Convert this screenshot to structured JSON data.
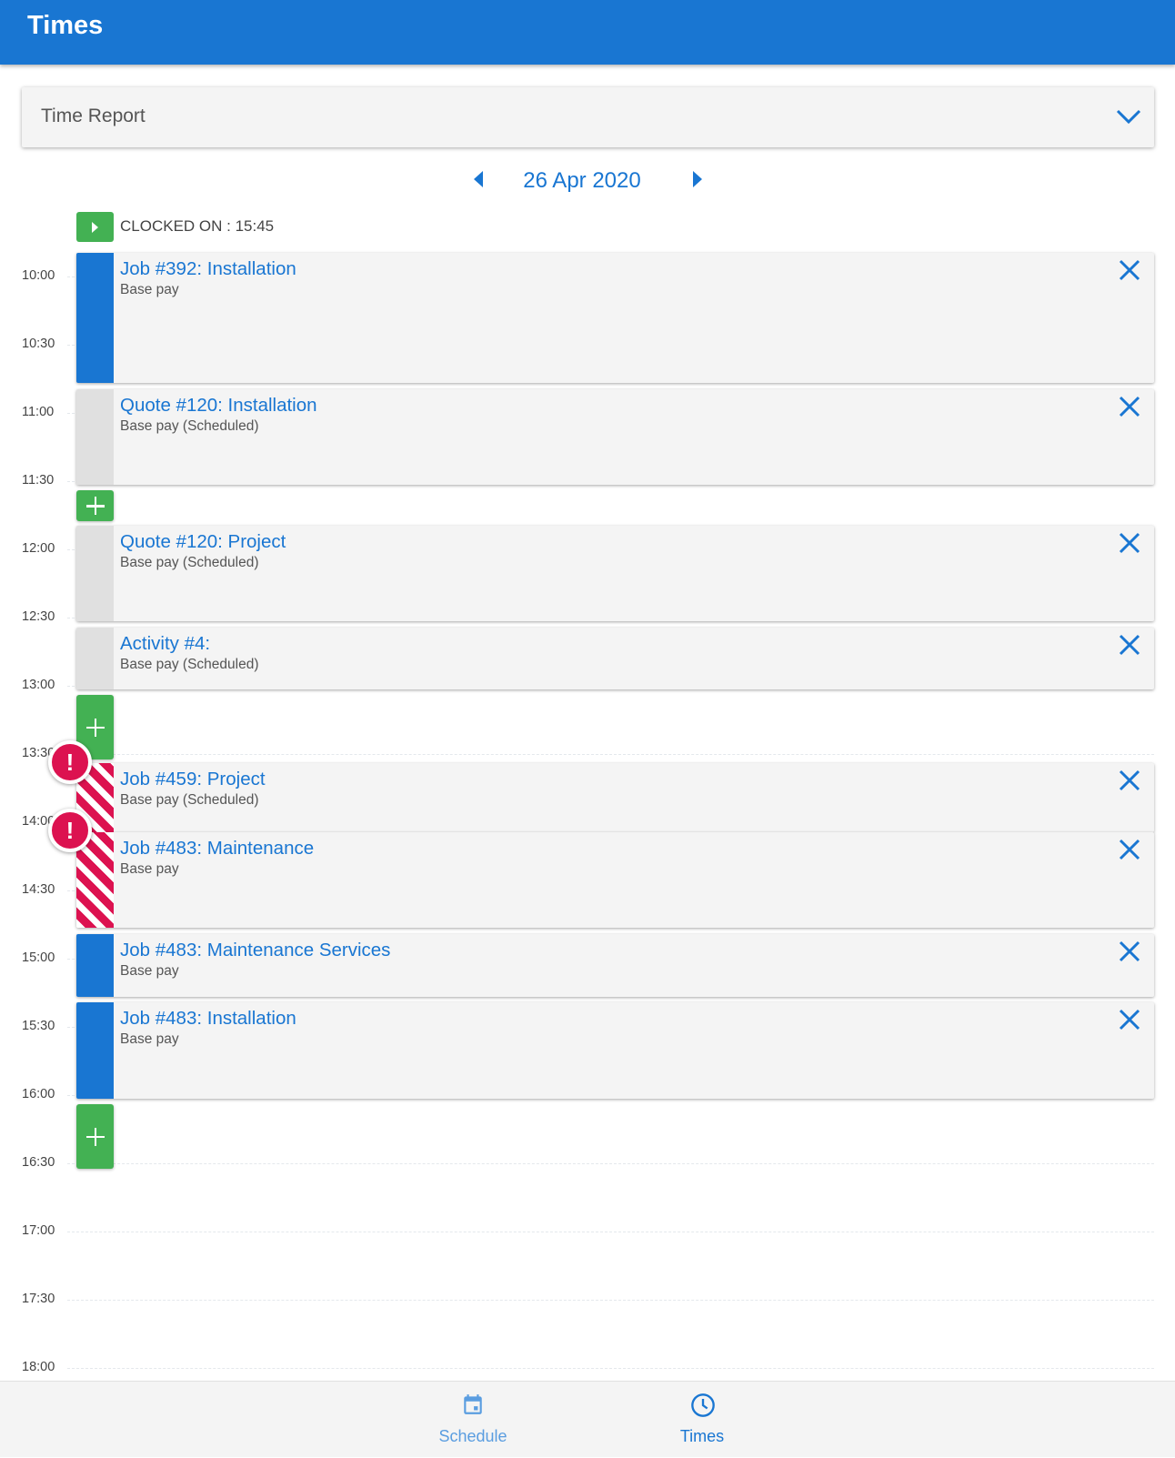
{
  "header": {
    "title": "Times"
  },
  "report_select": {
    "value": "Time Report"
  },
  "date_nav": {
    "date": "26 Apr 2020"
  },
  "clock": {
    "label": "CLOCKED ON : 15:45"
  },
  "time_labels": [
    "10:00",
    "10:30",
    "11:00",
    "11:30",
    "12:00",
    "12:30",
    "13:00",
    "13:30",
    "14:00",
    "14:30",
    "15:00",
    "15:30",
    "16:00",
    "16:30",
    "17:00",
    "17:30",
    "18:00"
  ],
  "entries": [
    {
      "title": "Job #392: Installation",
      "sub": "Base pay",
      "status": "clocked"
    },
    {
      "title": "Quote #120: Installation",
      "sub": "Base pay (Scheduled)",
      "status": "scheduled"
    },
    {
      "title": "Quote #120: Project",
      "sub": "Base pay (Scheduled)",
      "status": "scheduled"
    },
    {
      "title": "Activity #4:",
      "sub": "Base pay (Scheduled)",
      "status": "scheduled"
    },
    {
      "title": "Job #459: Project",
      "sub": "Base pay (Scheduled)",
      "status": "conflict"
    },
    {
      "title": "Job #483: Maintenance",
      "sub": "Base pay",
      "status": "conflict"
    },
    {
      "title": "Job #483: Maintenance Services",
      "sub": "Base pay",
      "status": "clocked"
    },
    {
      "title": "Job #483: Installation",
      "sub": "Base pay",
      "status": "clocked"
    }
  ],
  "colors": {
    "primary": "#1976d2",
    "add": "#43b153",
    "conflict": "#dc1250",
    "scheduled": "#e0e0e0"
  },
  "footer": {
    "tabs": [
      {
        "label": "Schedule",
        "icon": "calendar-icon",
        "active": false
      },
      {
        "label": "Times",
        "icon": "clock-icon",
        "active": true
      }
    ]
  }
}
